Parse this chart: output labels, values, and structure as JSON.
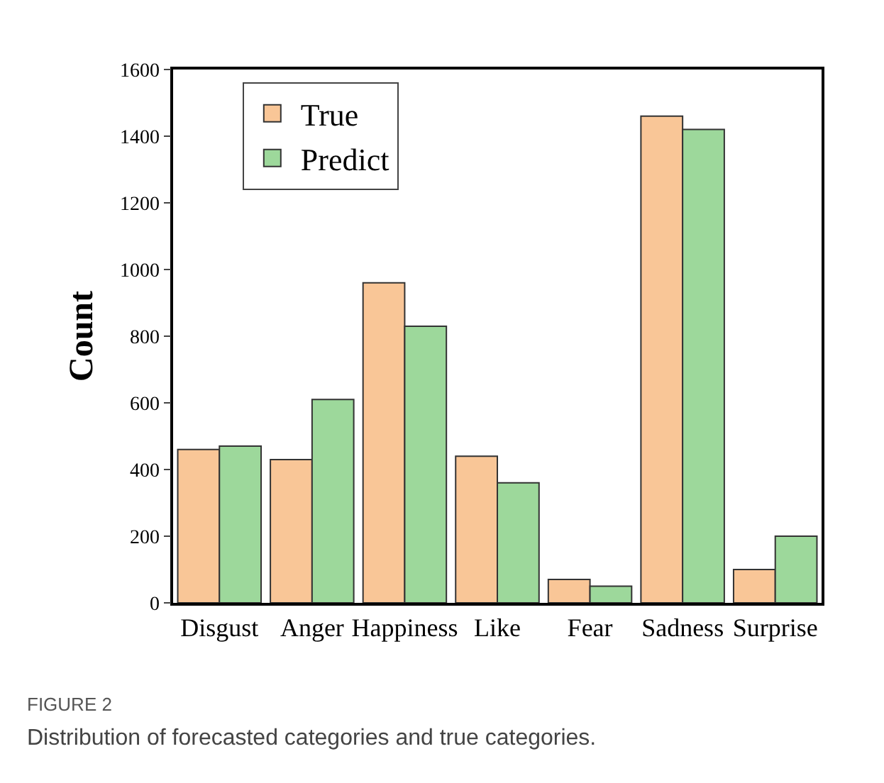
{
  "chart_data": {
    "type": "bar",
    "ylabel": "Count",
    "categories": [
      "Disgust",
      "Anger",
      "Happiness",
      "Like",
      "Fear",
      "Sadness",
      "Surprise"
    ],
    "series": [
      {
        "name": "True",
        "color": "#f9c697",
        "values": [
          460,
          430,
          960,
          440,
          70,
          1460,
          100
        ]
      },
      {
        "name": "Predict",
        "color": "#9dd89b",
        "values": [
          470,
          610,
          830,
          360,
          50,
          1420,
          200
        ]
      }
    ],
    "ylim": [
      0,
      1600
    ],
    "yticks": [
      0,
      200,
      400,
      600,
      800,
      1000,
      1200,
      1400,
      1600
    ],
    "grid": false,
    "legend": "top left",
    "annotations": [
      "FIGURE 2",
      "Distribution of forecasted categories and true categories."
    ]
  }
}
